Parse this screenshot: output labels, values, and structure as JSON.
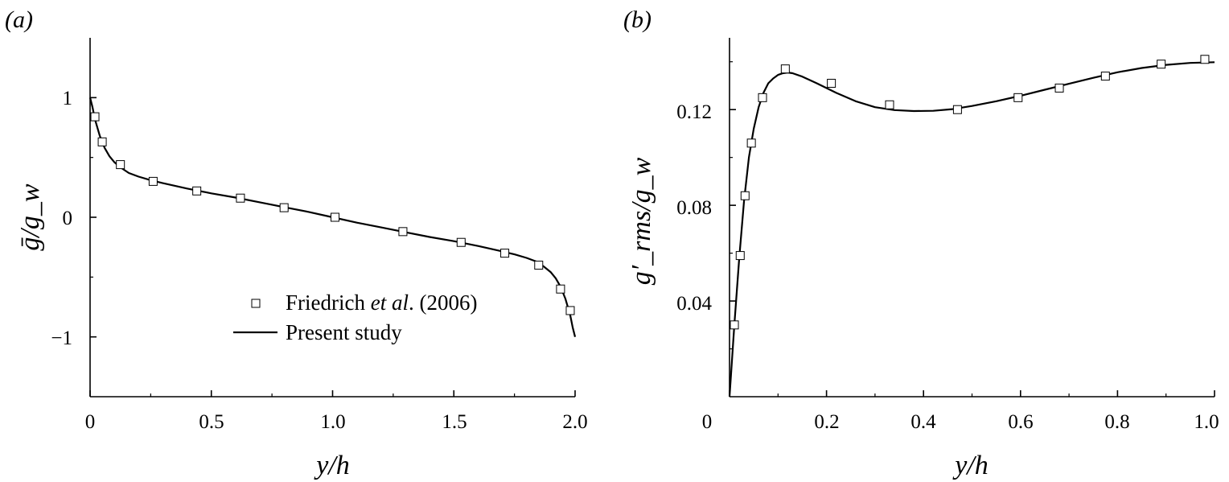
{
  "chart_data": [
    {
      "panel_label": "(a)",
      "type": "scatter",
      "xlabel": "y/h",
      "ylabel": "ḡ/g_w",
      "xlim": [
        0,
        2.0
      ],
      "ylim": [
        -1.5,
        1.5
      ],
      "x_ticks": [
        "0",
        "0.5",
        "1.0",
        "1.5",
        "2.0"
      ],
      "y_ticks": [
        "1",
        "0",
        "−1"
      ],
      "legend": {
        "placement": "bottom-center",
        "markers_label_parts": [
          "Friedrich ",
          "et al",
          ". (2006)"
        ],
        "line_label": "Present study"
      },
      "series": [
        {
          "name": "Friedrich et al. (2006)",
          "style": "open-square",
          "x": [
            0.02,
            0.05,
            0.125,
            0.26,
            0.44,
            0.62,
            0.8,
            1.01,
            1.29,
            1.53,
            1.71,
            1.85,
            1.94,
            1.98
          ],
          "y": [
            0.84,
            0.63,
            0.44,
            0.3,
            0.22,
            0.16,
            0.08,
            0.0,
            -0.12,
            -0.21,
            -0.3,
            -0.4,
            -0.6,
            -0.78
          ]
        },
        {
          "name": "Present study",
          "style": "line",
          "x": [
            0,
            0.01,
            0.02,
            0.04,
            0.06,
            0.08,
            0.1,
            0.13,
            0.16,
            0.2,
            0.25,
            0.3,
            0.4,
            0.5,
            0.6,
            0.7,
            0.8,
            0.9,
            1.0,
            1.1,
            1.2,
            1.3,
            1.4,
            1.5,
            1.6,
            1.7,
            1.75,
            1.8,
            1.84,
            1.87,
            1.9,
            1.92,
            1.94,
            1.96,
            1.98,
            1.99,
            2.0
          ],
          "y": [
            1.0,
            0.92,
            0.82,
            0.68,
            0.58,
            0.51,
            0.46,
            0.41,
            0.37,
            0.34,
            0.31,
            0.285,
            0.24,
            0.2,
            0.165,
            0.125,
            0.085,
            0.045,
            0.0,
            -0.045,
            -0.085,
            -0.125,
            -0.165,
            -0.2,
            -0.24,
            -0.285,
            -0.31,
            -0.34,
            -0.37,
            -0.41,
            -0.46,
            -0.51,
            -0.58,
            -0.68,
            -0.82,
            -0.92,
            -1.0
          ]
        }
      ]
    },
    {
      "panel_label": "(b)",
      "type": "scatter",
      "xlabel": "y/h",
      "ylabel": "g′_rms/g_w",
      "xlim": [
        0,
        1.0
      ],
      "ylim": [
        0,
        0.15
      ],
      "x_ticks": [
        "0",
        "0.2",
        "0.4",
        "0.6",
        "0.8",
        "1.0"
      ],
      "y_ticks": [
        "0.04",
        "0.08",
        "0.12"
      ],
      "series": [
        {
          "name": "Friedrich et al. (2006)",
          "style": "open-square",
          "x": [
            0.01,
            0.022,
            0.032,
            0.045,
            0.068,
            0.115,
            0.21,
            0.33,
            0.47,
            0.595,
            0.68,
            0.775,
            0.89,
            0.98
          ],
          "y": [
            0.03,
            0.059,
            0.084,
            0.106,
            0.125,
            0.137,
            0.131,
            0.122,
            0.12,
            0.125,
            0.129,
            0.134,
            0.139,
            0.141
          ]
        },
        {
          "name": "Present study",
          "style": "line",
          "x": [
            0,
            0.005,
            0.01,
            0.02,
            0.03,
            0.04,
            0.05,
            0.06,
            0.07,
            0.08,
            0.09,
            0.1,
            0.11,
            0.12,
            0.13,
            0.15,
            0.18,
            0.22,
            0.26,
            0.3,
            0.34,
            0.38,
            0.42,
            0.46,
            0.5,
            0.55,
            0.6,
            0.65,
            0.7,
            0.75,
            0.8,
            0.85,
            0.9,
            0.95,
            1.0
          ],
          "y": [
            0.0,
            0.015,
            0.03,
            0.058,
            0.082,
            0.1,
            0.112,
            0.121,
            0.127,
            0.131,
            0.133,
            0.1345,
            0.1352,
            0.1355,
            0.1352,
            0.1338,
            0.131,
            0.127,
            0.1235,
            0.121,
            0.1198,
            0.1194,
            0.1195,
            0.1202,
            0.1215,
            0.1235,
            0.1258,
            0.1283,
            0.1308,
            0.1333,
            0.1356,
            0.1374,
            0.1387,
            0.1395,
            0.1398
          ]
        }
      ]
    }
  ]
}
